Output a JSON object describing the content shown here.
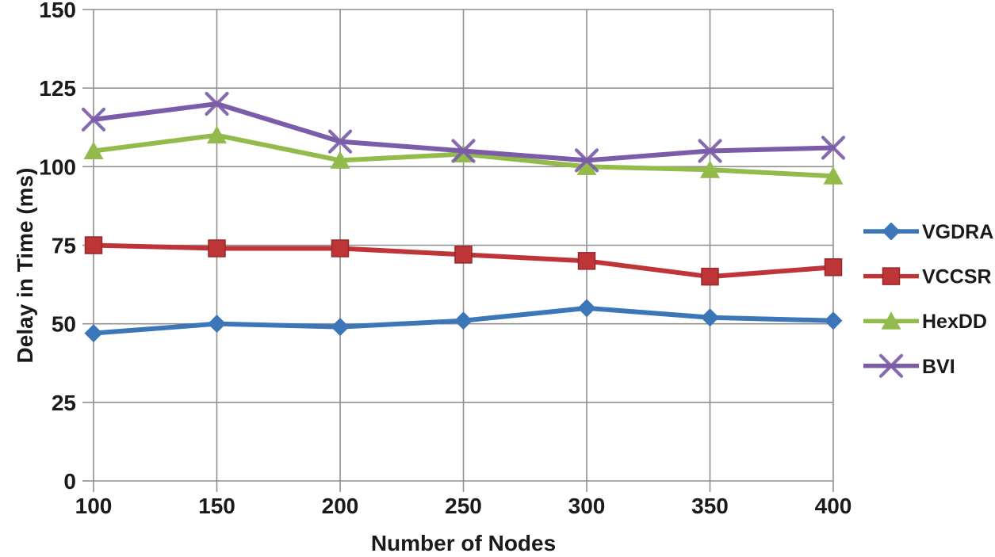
{
  "figure": {
    "background": "#ffffff",
    "grid_color": "#8f8f8f",
    "axis_text_color": "#1a1a1a"
  },
  "chart_data": {
    "type": "line",
    "title": "",
    "xlabel": "Number of Nodes",
    "ylabel": "Delay in Time (ms)",
    "x": [
      100,
      150,
      200,
      250,
      300,
      350,
      400
    ],
    "xlim": [
      100,
      400
    ],
    "ylim": [
      0,
      150
    ],
    "xticks": [
      100,
      150,
      200,
      250,
      300,
      350,
      400
    ],
    "yticks": [
      0,
      25,
      50,
      75,
      100,
      125,
      150
    ],
    "grid": true,
    "legend_position": "right",
    "series": [
      {
        "name": "VGDRA",
        "color": "#3b76b8",
        "marker": "diamond",
        "values": [
          47,
          50,
          49,
          51,
          55,
          52,
          51
        ]
      },
      {
        "name": "VCCSR",
        "color": "#be3538",
        "marker": "square",
        "values": [
          75,
          74,
          74,
          72,
          70,
          65,
          68
        ]
      },
      {
        "name": "HexDD",
        "color": "#93bb4b",
        "marker": "triangle",
        "values": [
          105,
          110,
          102,
          104,
          100,
          99,
          97
        ]
      },
      {
        "name": "BVI",
        "color": "#7b5ca9",
        "marker": "x",
        "values": [
          115,
          120,
          108,
          105,
          102,
          105,
          106
        ]
      }
    ]
  }
}
